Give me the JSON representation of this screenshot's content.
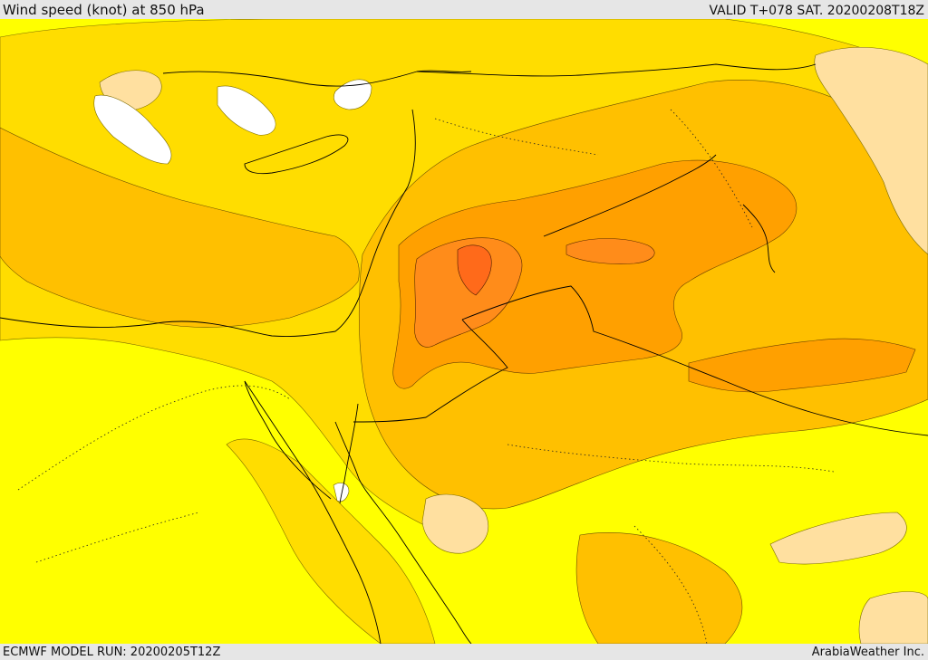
{
  "header": {
    "title": "Wind speed (knot) at 850 hPa",
    "valid": "VALID T+078 SAT. 20200208T18Z"
  },
  "footer": {
    "model_run": "ECMWF MODEL RUN: 20200205T12Z",
    "credit": "ArabiaWeather Inc."
  },
  "map": {
    "field": "Wind speed (knot) at 850 hPa",
    "colors": {
      "base": "#ffff00",
      "low": "#ffffff",
      "pale": "#ffe0a0",
      "mid": "#ffdd00",
      "moderate": "#ffc000",
      "strong": "#ffa000",
      "stronger": "#ff8c1a",
      "strongest": "#ff6a1a"
    }
  }
}
